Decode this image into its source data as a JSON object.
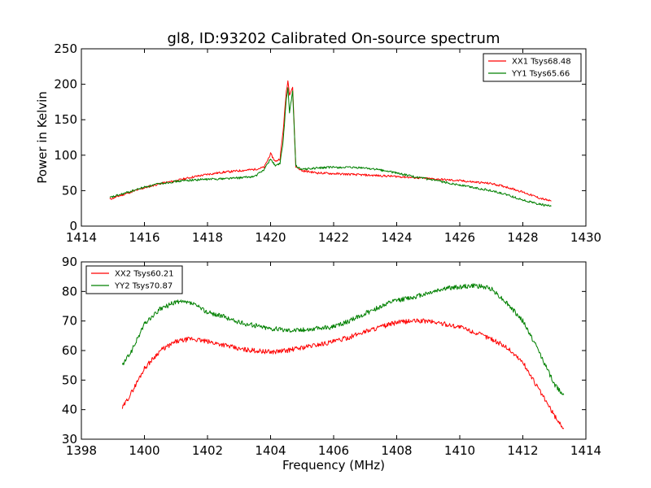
{
  "figure": {
    "title": "gl8, ID:93202 Calibrated On-source spectrum",
    "xlabel": "Frequency (MHz)"
  },
  "chart_data": [
    {
      "type": "line",
      "title": "gl8, ID:93202 Calibrated On-source spectrum",
      "xlabel": "",
      "ylabel": "Power in Kelvin",
      "xlim": [
        1414,
        1430
      ],
      "ylim": [
        0,
        250
      ],
      "xticks": [
        1414,
        1416,
        1418,
        1420,
        1422,
        1424,
        1426,
        1428,
        1430
      ],
      "yticks": [
        0,
        50,
        100,
        150,
        200,
        250
      ],
      "grid": false,
      "legend": "top-right",
      "series": [
        {
          "name": "XX1 Tsys68.48",
          "color": "#ff0000",
          "points": [
            [
              1414.9,
              38
            ],
            [
              1415.5,
              47
            ],
            [
              1416.0,
              54
            ],
            [
              1416.5,
              60
            ],
            [
              1417.0,
              64
            ],
            [
              1417.5,
              69
            ],
            [
              1418.0,
              73
            ],
            [
              1418.5,
              76
            ],
            [
              1419.0,
              78
            ],
            [
              1419.5,
              80
            ],
            [
              1419.8,
              83
            ],
            [
              1420.0,
              102
            ],
            [
              1420.15,
              91
            ],
            [
              1420.3,
              95
            ],
            [
              1420.4,
              135
            ],
            [
              1420.5,
              190
            ],
            [
              1420.55,
              205
            ],
            [
              1420.6,
              186
            ],
            [
              1420.7,
              196
            ],
            [
              1420.8,
              84
            ],
            [
              1421.0,
              78
            ],
            [
              1421.5,
              75
            ],
            [
              1422.0,
              74
            ],
            [
              1423.0,
              72
            ],
            [
              1424.0,
              70
            ],
            [
              1425.0,
              67
            ],
            [
              1426.0,
              64
            ],
            [
              1427.0,
              60
            ],
            [
              1427.5,
              55
            ],
            [
              1428.0,
              48
            ],
            [
              1428.5,
              40
            ],
            [
              1428.9,
              35
            ]
          ]
        },
        {
          "name": "YY1 Tsys65.66",
          "color": "#008000",
          "points": [
            [
              1414.9,
              40
            ],
            [
              1415.5,
              48
            ],
            [
              1416.0,
              55
            ],
            [
              1416.5,
              60
            ],
            [
              1417.0,
              63
            ],
            [
              1417.5,
              65
            ],
            [
              1418.0,
              66
            ],
            [
              1418.5,
              67
            ],
            [
              1419.0,
              68
            ],
            [
              1419.5,
              70
            ],
            [
              1419.8,
              80
            ],
            [
              1420.0,
              95
            ],
            [
              1420.15,
              85
            ],
            [
              1420.3,
              88
            ],
            [
              1420.4,
              120
            ],
            [
              1420.5,
              180
            ],
            [
              1420.55,
              195
            ],
            [
              1420.6,
              160
            ],
            [
              1420.7,
              190
            ],
            [
              1420.8,
              85
            ],
            [
              1421.0,
              80
            ],
            [
              1421.5,
              82
            ],
            [
              1422.0,
              83
            ],
            [
              1423.0,
              82
            ],
            [
              1423.5,
              79
            ],
            [
              1424.0,
              75
            ],
            [
              1424.5,
              70
            ],
            [
              1425.0,
              66
            ],
            [
              1426.0,
              58
            ],
            [
              1427.0,
              50
            ],
            [
              1427.5,
              44
            ],
            [
              1428.0,
              37
            ],
            [
              1428.5,
              31
            ],
            [
              1428.9,
              28
            ]
          ]
        }
      ]
    },
    {
      "type": "line",
      "xlabel": "Frequency (MHz)",
      "ylabel": "",
      "xlim": [
        1398,
        1414
      ],
      "ylim": [
        30,
        90
      ],
      "xticks": [
        1398,
        1400,
        1402,
        1404,
        1406,
        1408,
        1410,
        1412,
        1414
      ],
      "yticks": [
        30,
        40,
        50,
        60,
        70,
        80,
        90
      ],
      "grid": false,
      "legend": "top-left",
      "series": [
        {
          "name": "XX2 Tsys60.21",
          "color": "#ff0000",
          "points": [
            [
              1399.3,
              40.5
            ],
            [
              1399.6,
              46
            ],
            [
              1400.0,
              54
            ],
            [
              1400.5,
              60
            ],
            [
              1401.0,
              63
            ],
            [
              1401.5,
              64
            ],
            [
              1402.0,
              63
            ],
            [
              1402.5,
              62
            ],
            [
              1403.0,
              60.5
            ],
            [
              1403.5,
              60
            ],
            [
              1404.0,
              59.5
            ],
            [
              1404.5,
              60
            ],
            [
              1405.0,
              61
            ],
            [
              1405.5,
              62
            ],
            [
              1406.0,
              63
            ],
            [
              1406.5,
              64.5
            ],
            [
              1407.0,
              66.5
            ],
            [
              1407.5,
              68
            ],
            [
              1408.0,
              69.5
            ],
            [
              1408.5,
              70
            ],
            [
              1409.0,
              70
            ],
            [
              1409.5,
              69
            ],
            [
              1410.0,
              68
            ],
            [
              1410.5,
              66
            ],
            [
              1411.0,
              64
            ],
            [
              1411.5,
              61
            ],
            [
              1412.0,
              56
            ],
            [
              1412.5,
              47
            ],
            [
              1413.0,
              38
            ],
            [
              1413.3,
              33.5
            ]
          ]
        },
        {
          "name": "YY2 Tsys70.87",
          "color": "#008000",
          "points": [
            [
              1399.3,
              55
            ],
            [
              1399.6,
              60
            ],
            [
              1400.0,
              69
            ],
            [
              1400.5,
              74
            ],
            [
              1401.0,
              76.5
            ],
            [
              1401.5,
              76
            ],
            [
              1402.0,
              73
            ],
            [
              1402.5,
              71.5
            ],
            [
              1403.0,
              69.5
            ],
            [
              1403.5,
              68.5
            ],
            [
              1404.0,
              67.5
            ],
            [
              1404.5,
              67
            ],
            [
              1405.0,
              67
            ],
            [
              1405.5,
              67.5
            ],
            [
              1406.0,
              68
            ],
            [
              1406.5,
              70
            ],
            [
              1407.0,
              72.5
            ],
            [
              1407.5,
              75
            ],
            [
              1408.0,
              77
            ],
            [
              1408.5,
              78
            ],
            [
              1409.0,
              79.5
            ],
            [
              1409.5,
              81
            ],
            [
              1410.0,
              81.5
            ],
            [
              1410.5,
              82
            ],
            [
              1411.0,
              81
            ],
            [
              1411.5,
              76
            ],
            [
              1412.0,
              70
            ],
            [
              1412.5,
              60
            ],
            [
              1413.0,
              48.5
            ],
            [
              1413.3,
              45
            ]
          ]
        }
      ]
    }
  ]
}
